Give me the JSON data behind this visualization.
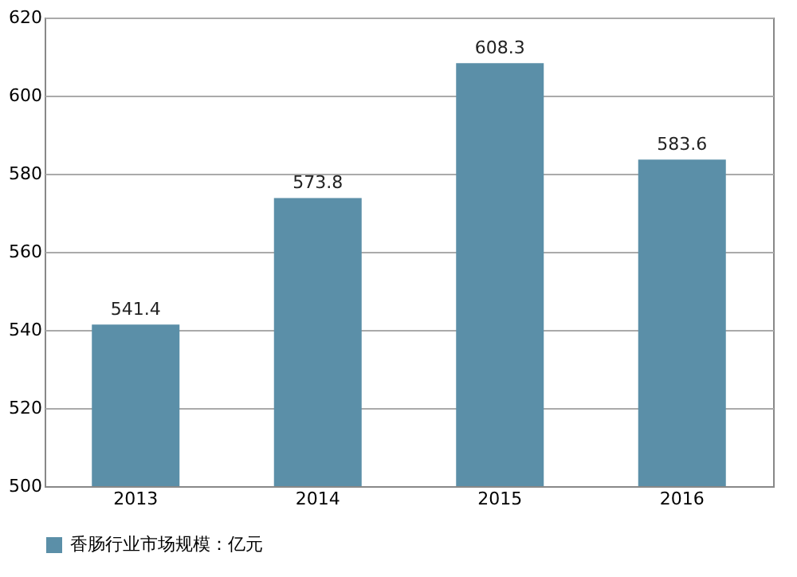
{
  "chart_data": {
    "type": "bar",
    "categories": [
      "2013",
      "2014",
      "2015",
      "2016"
    ],
    "series": [
      {
        "name": "香肠行业市场规模：亿元",
        "color": "#5b8fa8",
        "values": [
          541.4,
          573.8,
          608.3,
          583.6
        ]
      }
    ],
    "ylim": [
      500,
      620
    ],
    "yticks": [
      500,
      520,
      540,
      560,
      580,
      600,
      620
    ],
    "grid": "y",
    "legend": "bottom",
    "data_labels": true
  }
}
